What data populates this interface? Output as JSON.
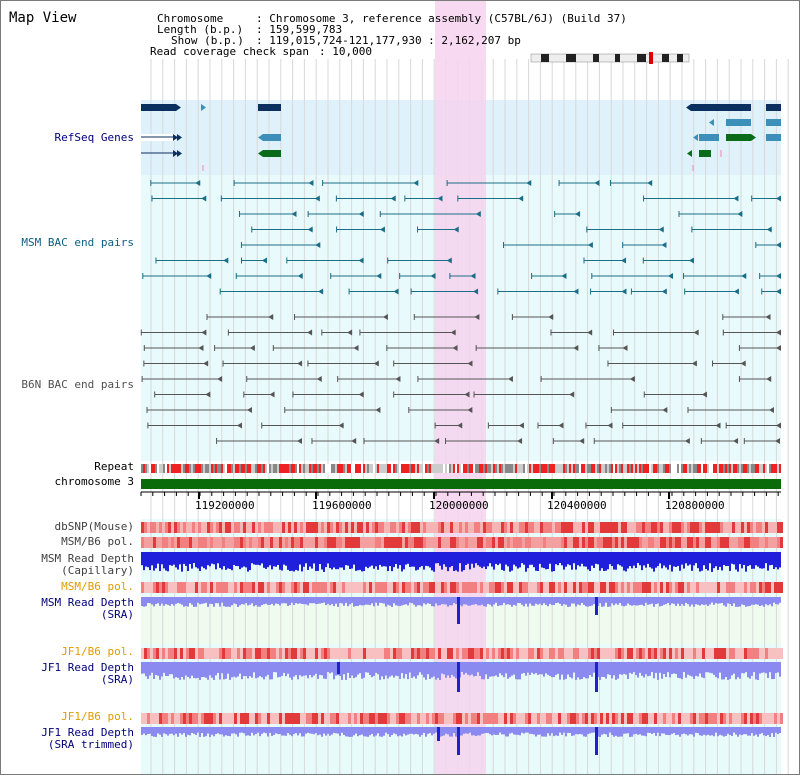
{
  "title": "Map View",
  "info": {
    "chromosome_key": "Chromosome",
    "chromosome_val": ": Chromosome 3, reference assembly (C57BL/6J) (Build 37)",
    "length_key": "Length (b.p.)",
    "length_val": ": 159,599,783",
    "show_key": "Show (b.p.)",
    "show_val": ": 119,015,724-121,177,930 : 2,162,207 bp",
    "span_key": "Read coverage check span",
    "span_val": ": 10,000"
  },
  "track_labels": {
    "refseq": "RefSeq Genes",
    "msm_bac": "MSM BAC end pairs",
    "b6n_bac": "B6N BAC end pairs",
    "repeat": "Repeat",
    "chromosome": "chromosome 3",
    "dbsnp": "dbSNP(Mouse)",
    "msm_b6_pol_1": "MSM/B6 pol.",
    "msm_depth_cap_1": "MSM Read Depth",
    "msm_depth_cap_2": "(Capillary)",
    "msm_b6_pol_2": "MSM/B6 pol.",
    "msm_depth_sra_1": "MSM Read Depth",
    "msm_depth_sra_2": "(SRA)",
    "jf1_pol_1": "JF1/B6 pol.",
    "jf1_depth_sra_1": "JF1 Read Depth",
    "jf1_depth_sra_2": "(SRA)",
    "jf1_pol_2": "JF1/B6 pol.",
    "jf1_depth_trim_1": "JF1 Read Depth",
    "jf1_depth_trim_2": "(SRA trimmed)"
  },
  "axis": {
    "ticks": [
      "119200000",
      "119600000",
      "120000000",
      "120400000",
      "120800000"
    ]
  },
  "colors": {
    "refseq_bg": "#dff2fb",
    "highlight": "#f6d4ee",
    "refseq_dark": "#0b2f5f",
    "refseq_mid": "#3c8fb8",
    "refseq_green": "#0a6b1b",
    "msm_bac": "#1a6e86",
    "b6n_bac": "#555555",
    "chromosome_bar": "#0a6b0a",
    "depth_capillary": "#1f1fdc",
    "depth_sra": "#8a8af0",
    "pol_red": "#e23a3a"
  }
}
